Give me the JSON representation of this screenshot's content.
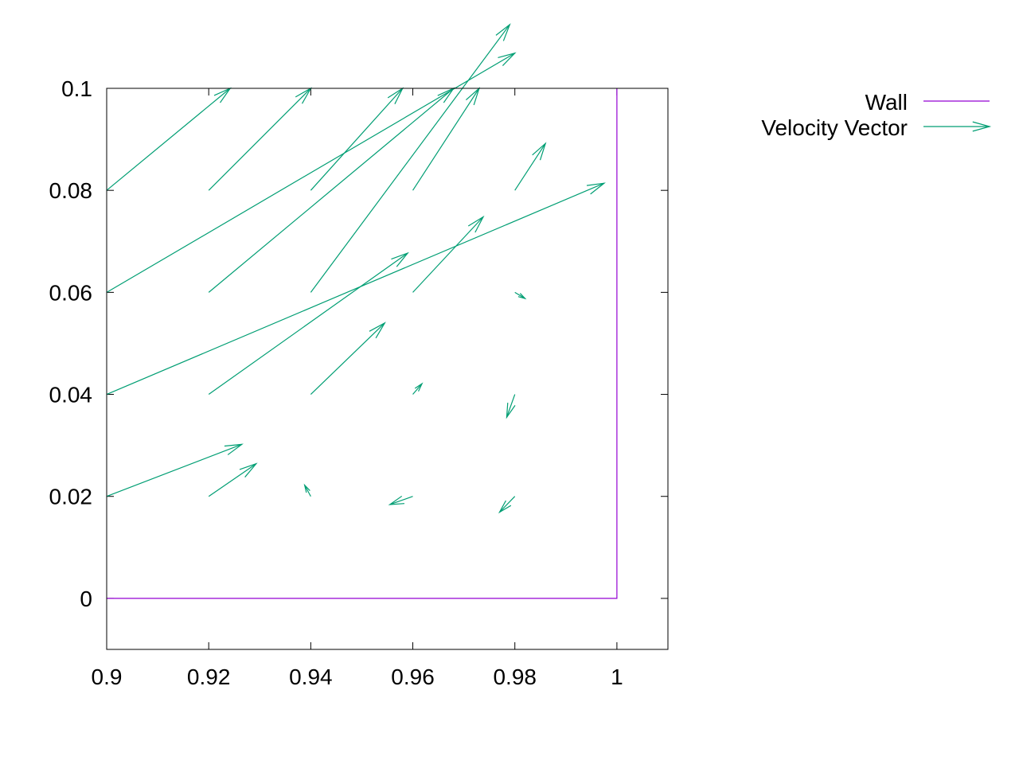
{
  "chart_data": {
    "type": "vector-field",
    "title": "",
    "xlabel": "",
    "ylabel": "",
    "xlim": [
      0.9,
      1.01
    ],
    "ylim": [
      -0.01,
      0.1
    ],
    "x_ticks": [
      "0.9",
      "0.92",
      "0.94",
      "0.96",
      "0.98",
      "1"
    ],
    "y_ticks": [
      "0",
      "0.02",
      "0.04",
      "0.06",
      "0.08",
      "0.1"
    ],
    "grid": false,
    "legend_position": "top-right-outside",
    "series": [
      {
        "name": "Wall",
        "kind": "line",
        "color": "#9400d3",
        "points": [
          [
            0.9,
            0.0
          ],
          [
            1.0,
            0.0
          ],
          [
            1.0,
            0.1
          ]
        ]
      },
      {
        "name": "Velocity Vector",
        "kind": "vectors",
        "color": "#009e73",
        "vectors": [
          {
            "x": 0.9,
            "y": 0.02,
            "dx": 0.0265,
            "dy": 0.0102
          },
          {
            "x": 0.9,
            "y": 0.04,
            "dx": 0.0975,
            "dy": 0.0414
          },
          {
            "x": 0.9,
            "y": 0.06,
            "dx": 0.08,
            "dy": 0.0469
          },
          {
            "x": 0.9,
            "y": 0.08,
            "dx": 0.0242,
            "dy": 0.02
          },
          {
            "x": 0.92,
            "y": 0.02,
            "dx": 0.0093,
            "dy": 0.0064
          },
          {
            "x": 0.92,
            "y": 0.04,
            "dx": 0.039,
            "dy": 0.0277
          },
          {
            "x": 0.92,
            "y": 0.06,
            "dx": 0.048,
            "dy": 0.04
          },
          {
            "x": 0.92,
            "y": 0.08,
            "dx": 0.02,
            "dy": 0.02
          },
          {
            "x": 0.94,
            "y": 0.02,
            "dx": -0.0012,
            "dy": 0.0022
          },
          {
            "x": 0.94,
            "y": 0.04,
            "dx": 0.0145,
            "dy": 0.014
          },
          {
            "x": 0.94,
            "y": 0.06,
            "dx": 0.039,
            "dy": 0.0525
          },
          {
            "x": 0.94,
            "y": 0.08,
            "dx": 0.018,
            "dy": 0.02
          },
          {
            "x": 0.96,
            "y": 0.02,
            "dx": -0.0045,
            "dy": -0.0016
          },
          {
            "x": 0.96,
            "y": 0.04,
            "dx": 0.0018,
            "dy": 0.0021
          },
          {
            "x": 0.96,
            "y": 0.06,
            "dx": 0.0138,
            "dy": 0.0148
          },
          {
            "x": 0.96,
            "y": 0.08,
            "dx": 0.013,
            "dy": 0.02
          },
          {
            "x": 0.98,
            "y": 0.02,
            "dx": -0.003,
            "dy": -0.0031
          },
          {
            "x": 0.98,
            "y": 0.04,
            "dx": -0.0016,
            "dy": -0.0045
          },
          {
            "x": 0.98,
            "y": 0.06,
            "dx": 0.002,
            "dy": -0.0012
          },
          {
            "x": 0.98,
            "y": 0.08,
            "dx": 0.006,
            "dy": 0.0092
          }
        ]
      }
    ]
  }
}
